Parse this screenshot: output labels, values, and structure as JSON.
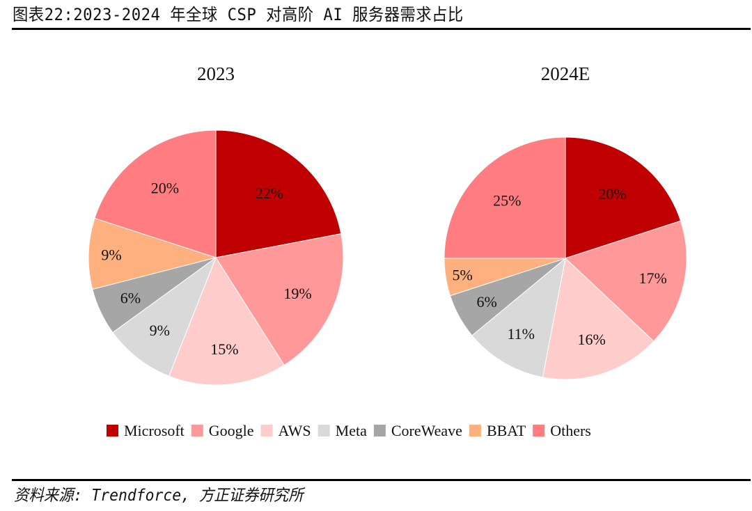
{
  "figure": {
    "title": "图表22:2023-2024 年全球 CSP 对高阶 AI 服务器需求占比",
    "source": "资料来源: Trendforce, 方正证券研究所"
  },
  "chart_data": {
    "type": "pie",
    "title": "2023-2024 年全球 CSP 对高阶 AI 服务器需求占比",
    "categories": [
      "Microsoft",
      "Google",
      "AWS",
      "Meta",
      "CoreWeave",
      "BBAT",
      "Others"
    ],
    "colors": [
      "#C00000",
      "#FF9999",
      "#FFCCCC",
      "#D9D9D9",
      "#A6A6A6",
      "#FFB07F",
      "#FF7C80"
    ],
    "legend_position": "bottom",
    "start_angle": "12 o'clock",
    "direction": "clockwise",
    "charts": [
      {
        "title": "2023",
        "values": [
          22,
          19,
          15,
          9,
          6,
          9,
          20
        ],
        "labels": [
          "22%",
          "19%",
          "15%",
          "9%",
          "6%",
          "9%",
          "20%"
        ]
      },
      {
        "title": "2024E",
        "values": [
          20,
          17,
          16,
          11,
          6,
          5,
          25
        ],
        "labels": [
          "20%",
          "17%",
          "16%",
          "11%",
          "6%",
          "5%",
          "25%"
        ]
      }
    ]
  }
}
